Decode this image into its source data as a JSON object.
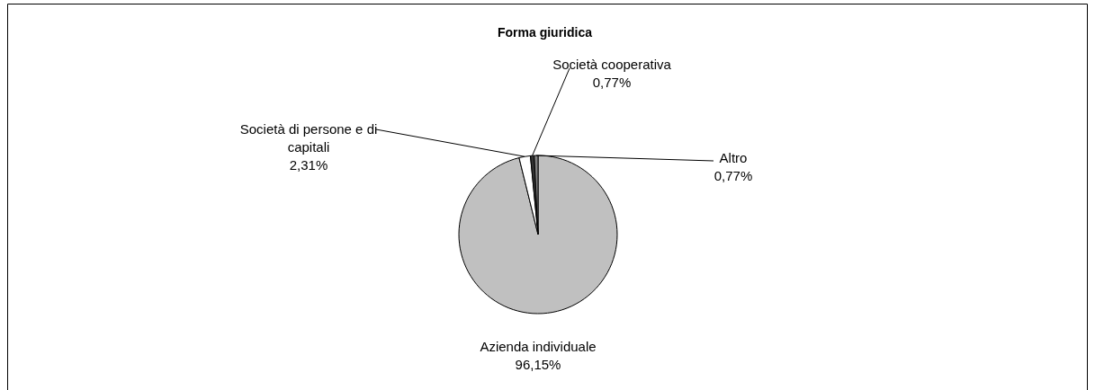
{
  "chart_data": {
    "type": "pie",
    "title": "Forma giuridica",
    "categories": [
      "Azienda individuale",
      "Società di persone e di capitali",
      "Società cooperativa",
      "Altro"
    ],
    "values": [
      96.15,
      2.31,
      0.77,
      0.77
    ],
    "colors": [
      "#c0c0c0",
      "#ffffff",
      "#333333",
      "#808080"
    ],
    "value_labels": [
      "96,15%",
      "2,31%",
      "0,77%",
      "0,77%"
    ]
  }
}
